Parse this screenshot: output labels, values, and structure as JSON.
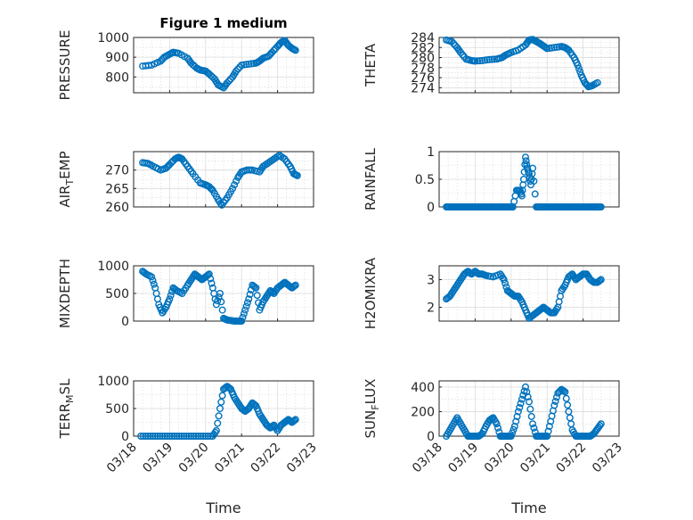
{
  "figure": {
    "title": "Figure 1 medium",
    "xlabel": "Time",
    "marker_color": "#0072BD"
  },
  "chart_data": [
    {
      "type": "scatter",
      "id": "pressure",
      "ylabel": "PRESSURE",
      "ylim": [
        720,
        1000
      ],
      "yticks": [
        "800",
        "900",
        "1000"
      ],
      "ytick_values": [
        800,
        900,
        1000
      ],
      "xlim": [
        0,
        5
      ],
      "xtick_labels": [
        "03/18",
        "03/19",
        "03/20",
        "03/21",
        "03/22",
        "03/23"
      ],
      "x": [
        0.25,
        0.5,
        0.75,
        0.85,
        1.0,
        1.1,
        1.25,
        1.5,
        1.6,
        1.75,
        1.85,
        2.0,
        2.1,
        2.25,
        2.35,
        2.5,
        2.6,
        2.75,
        2.85,
        3.0,
        3.2,
        3.4,
        3.5,
        3.6,
        3.75,
        3.85,
        4.0,
        4.1,
        4.2,
        4.3,
        4.4,
        4.5
      ],
      "y": [
        855,
        860,
        880,
        900,
        915,
        925,
        920,
        895,
        870,
        845,
        835,
        830,
        815,
        790,
        760,
        745,
        770,
        800,
        830,
        860,
        865,
        870,
        880,
        895,
        905,
        925,
        955,
        975,
        985,
        960,
        945,
        935
      ]
    },
    {
      "type": "scatter",
      "id": "theta",
      "ylabel": "THETA",
      "ylim": [
        273,
        284
      ],
      "yticks": [
        "274",
        "276",
        "278",
        "280",
        "282",
        "284"
      ],
      "ytick_values": [
        274,
        276,
        278,
        280,
        282,
        284
      ],
      "xlim": [
        0,
        5
      ],
      "xtick_labels": [
        "03/18",
        "03/19",
        "03/20",
        "03/21",
        "03/22",
        "03/23"
      ],
      "x": [
        0.2,
        0.35,
        0.5,
        0.6,
        0.75,
        0.9,
        1.0,
        1.2,
        1.4,
        1.6,
        1.75,
        1.85,
        2.0,
        2.2,
        2.4,
        2.5,
        2.6,
        2.7,
        2.8,
        2.9,
        3.0,
        3.2,
        3.4,
        3.5,
        3.6,
        3.75,
        3.85,
        3.95,
        4.05,
        4.15,
        4.25,
        4.4
      ],
      "y": [
        283.5,
        283.2,
        282.0,
        281.0,
        279.7,
        279.4,
        279.3,
        279.4,
        279.6,
        279.7,
        280.0,
        280.5,
        281.0,
        281.5,
        282.5,
        283.5,
        283.6,
        283.2,
        282.8,
        282.3,
        281.8,
        282.0,
        282.2,
        282.0,
        281.5,
        280.0,
        278.5,
        276.5,
        275.0,
        274.2,
        274.4,
        275.0
      ]
    },
    {
      "type": "scatter",
      "id": "air_temp",
      "ylabel": "AIR_TEMP",
      "ylim": [
        260,
        275
      ],
      "yticks": [
        "260",
        "265",
        "270"
      ],
      "ytick_values": [
        260,
        265,
        270
      ],
      "xlim": [
        0,
        5
      ],
      "xtick_labels": [
        "03/18",
        "03/19",
        "03/20",
        "03/21",
        "03/22",
        "03/23"
      ],
      "x": [
        0.25,
        0.4,
        0.55,
        0.75,
        0.9,
        1.0,
        1.15,
        1.25,
        1.35,
        1.5,
        1.65,
        1.85,
        2.0,
        2.1,
        2.2,
        2.35,
        2.45,
        2.6,
        2.75,
        2.9,
        3.0,
        3.15,
        3.3,
        3.5,
        3.6,
        3.75,
        3.9,
        4.05,
        4.2,
        4.35,
        4.45,
        4.55
      ],
      "y": [
        272,
        271.8,
        271,
        270,
        270.5,
        271.5,
        273,
        273.5,
        273,
        271,
        269,
        266.5,
        266,
        265.5,
        264.5,
        262,
        260.5,
        262.5,
        265,
        268,
        269.5,
        270,
        270,
        269.5,
        271,
        272,
        273,
        274,
        273,
        271,
        269,
        268.5
      ]
    },
    {
      "type": "scatter",
      "id": "rainfall",
      "ylabel": "RAINFALL",
      "ylim": [
        0,
        1
      ],
      "yticks": [
        "0",
        "0.5",
        "1"
      ],
      "ytick_values": [
        0,
        0.5,
        1
      ],
      "xlim": [
        0,
        5
      ],
      "xtick_labels": [
        "03/18",
        "03/19",
        "03/20",
        "03/21",
        "03/22",
        "03/23"
      ],
      "x": [
        0.2,
        0.3,
        0.4,
        0.5,
        0.6,
        0.7,
        0.8,
        0.9,
        1.0,
        1.1,
        1.2,
        1.3,
        1.4,
        1.5,
        1.6,
        1.7,
        1.8,
        1.9,
        2.0,
        2.05,
        2.15,
        2.25,
        2.3,
        2.35,
        2.4,
        2.45,
        2.5,
        2.55,
        2.6,
        2.7,
        2.8,
        2.9,
        3.0,
        3.1,
        3.2,
        3.3,
        3.4,
        3.5,
        3.6,
        3.7,
        3.8,
        3.9,
        4.0,
        4.1,
        4.2,
        4.3,
        4.4,
        4.5
      ],
      "y": [
        0,
        0,
        0,
        0,
        0,
        0,
        0,
        0,
        0,
        0,
        0,
        0,
        0,
        0,
        0,
        0,
        0,
        0,
        0,
        0,
        0.3,
        0.3,
        0.2,
        0.5,
        0.9,
        0.7,
        0.6,
        0.4,
        0.7,
        0,
        0,
        0,
        0,
        0,
        0,
        0,
        0,
        0,
        0,
        0,
        0,
        0,
        0,
        0,
        0,
        0,
        0,
        0
      ]
    },
    {
      "type": "scatter",
      "id": "mixdepth",
      "ylabel": "MIXDEPTH",
      "ylim": [
        0,
        1000
      ],
      "yticks": [
        "0",
        "500",
        "1000"
      ],
      "ytick_values": [
        0,
        500,
        1000
      ],
      "xlim": [
        0,
        5
      ],
      "xtick_labels": [
        "03/18",
        "03/19",
        "03/20",
        "03/21",
        "03/22",
        "03/23"
      ],
      "x": [
        0.25,
        0.35,
        0.5,
        0.6,
        0.7,
        0.8,
        0.9,
        1.0,
        1.1,
        1.2,
        1.35,
        1.5,
        1.6,
        1.7,
        1.8,
        1.9,
        2.0,
        2.1,
        2.2,
        2.3,
        2.4,
        2.5,
        2.6,
        2.7,
        2.8,
        2.9,
        3.0,
        3.1,
        3.2,
        3.3,
        3.4,
        3.5,
        3.6,
        3.7,
        3.8,
        3.9,
        4.0,
        4.1,
        4.2,
        4.3,
        4.4,
        4.5
      ],
      "y": [
        900,
        850,
        800,
        600,
        300,
        150,
        250,
        400,
        600,
        550,
        500,
        650,
        750,
        850,
        800,
        750,
        800,
        850,
        600,
        300,
        500,
        50,
        20,
        10,
        0,
        0,
        0,
        200,
        400,
        650,
        600,
        200,
        350,
        450,
        550,
        500,
        600,
        650,
        700,
        650,
        600,
        650
      ]
    },
    {
      "type": "scatter",
      "id": "h2omixra",
      "ylabel": "H2OMIXRA",
      "ylim": [
        1.5,
        3.5
      ],
      "yticks": [
        "2",
        "3"
      ],
      "ytick_values": [
        2,
        3
      ],
      "xlim": [
        0,
        5
      ],
      "xtick_labels": [
        "03/18",
        "03/19",
        "03/20",
        "03/21",
        "03/22",
        "03/23"
      ],
      "x": [
        0.2,
        0.3,
        0.4,
        0.5,
        0.6,
        0.7,
        0.8,
        0.9,
        1.0,
        1.1,
        1.2,
        1.3,
        1.5,
        1.7,
        1.8,
        1.9,
        2.0,
        2.1,
        2.2,
        2.3,
        2.4,
        2.5,
        2.6,
        2.7,
        2.8,
        2.9,
        3.0,
        3.1,
        3.2,
        3.3,
        3.4,
        3.5,
        3.6,
        3.7,
        3.8,
        3.9,
        4.0,
        4.1,
        4.2,
        4.3,
        4.4,
        4.5
      ],
      "y": [
        2.3,
        2.4,
        2.6,
        2.8,
        3.0,
        3.2,
        3.3,
        3.2,
        3.3,
        3.2,
        3.2,
        3.15,
        3.1,
        3.2,
        3.0,
        2.6,
        2.5,
        2.4,
        2.4,
        2.2,
        1.9,
        1.6,
        1.7,
        1.8,
        1.9,
        2.0,
        1.9,
        1.8,
        1.8,
        2.0,
        2.6,
        2.8,
        3.1,
        3.2,
        3.0,
        3.1,
        3.2,
        3.2,
        3.0,
        2.9,
        2.9,
        3.0
      ]
    },
    {
      "type": "scatter",
      "id": "terr_msl",
      "ylabel": "TERR_MSL",
      "ylim": [
        0,
        1000
      ],
      "yticks": [
        "0",
        "500",
        "1000"
      ],
      "ytick_values": [
        0,
        500,
        1000
      ],
      "xlim": [
        0,
        5
      ],
      "xtick_labels": [
        "03/18",
        "03/19",
        "03/20",
        "03/21",
        "03/22",
        "03/23"
      ],
      "x": [
        0.2,
        0.4,
        0.6,
        0.8,
        1.0,
        1.2,
        1.4,
        1.6,
        1.8,
        2.0,
        2.2,
        2.3,
        2.4,
        2.5,
        2.6,
        2.7,
        2.8,
        2.9,
        3.0,
        3.1,
        3.2,
        3.3,
        3.4,
        3.5,
        3.6,
        3.7,
        3.8,
        3.9,
        4.0,
        4.1,
        4.2,
        4.3,
        4.4,
        4.5
      ],
      "y": [
        0,
        0,
        0,
        0,
        0,
        0,
        0,
        0,
        0,
        0,
        0,
        100,
        500,
        850,
        900,
        850,
        700,
        600,
        500,
        450,
        500,
        600,
        550,
        400,
        300,
        200,
        150,
        200,
        100,
        200,
        250,
        300,
        250,
        300
      ]
    },
    {
      "type": "scatter",
      "id": "sun_flux",
      "ylabel": "SUN_FLUX",
      "ylim": [
        0,
        450
      ],
      "yticks": [
        "0",
        "200",
        "400"
      ],
      "ytick_values": [
        0,
        200,
        400
      ],
      "xlim": [
        0,
        5
      ],
      "xtick_labels": [
        "03/18",
        "03/19",
        "03/20",
        "03/21",
        "03/22",
        "03/23"
      ],
      "x": [
        0.2,
        0.3,
        0.4,
        0.5,
        0.6,
        0.7,
        0.8,
        0.9,
        1.0,
        1.1,
        1.2,
        1.3,
        1.4,
        1.5,
        1.6,
        1.7,
        1.8,
        1.9,
        2.0,
        2.1,
        2.2,
        2.3,
        2.4,
        2.5,
        2.6,
        2.7,
        2.8,
        2.9,
        3.0,
        3.1,
        3.2,
        3.3,
        3.4,
        3.5,
        3.6,
        3.7,
        3.8,
        3.9,
        4.0,
        4.1,
        4.2,
        4.3,
        4.4,
        4.5
      ],
      "y": [
        0,
        50,
        100,
        150,
        100,
        50,
        0,
        0,
        0,
        0,
        20,
        80,
        130,
        150,
        100,
        0,
        0,
        0,
        0,
        80,
        200,
        300,
        400,
        280,
        100,
        0,
        0,
        0,
        0,
        120,
        250,
        350,
        380,
        360,
        200,
        50,
        0,
        0,
        0,
        0,
        0,
        20,
        60,
        100
      ]
    }
  ]
}
